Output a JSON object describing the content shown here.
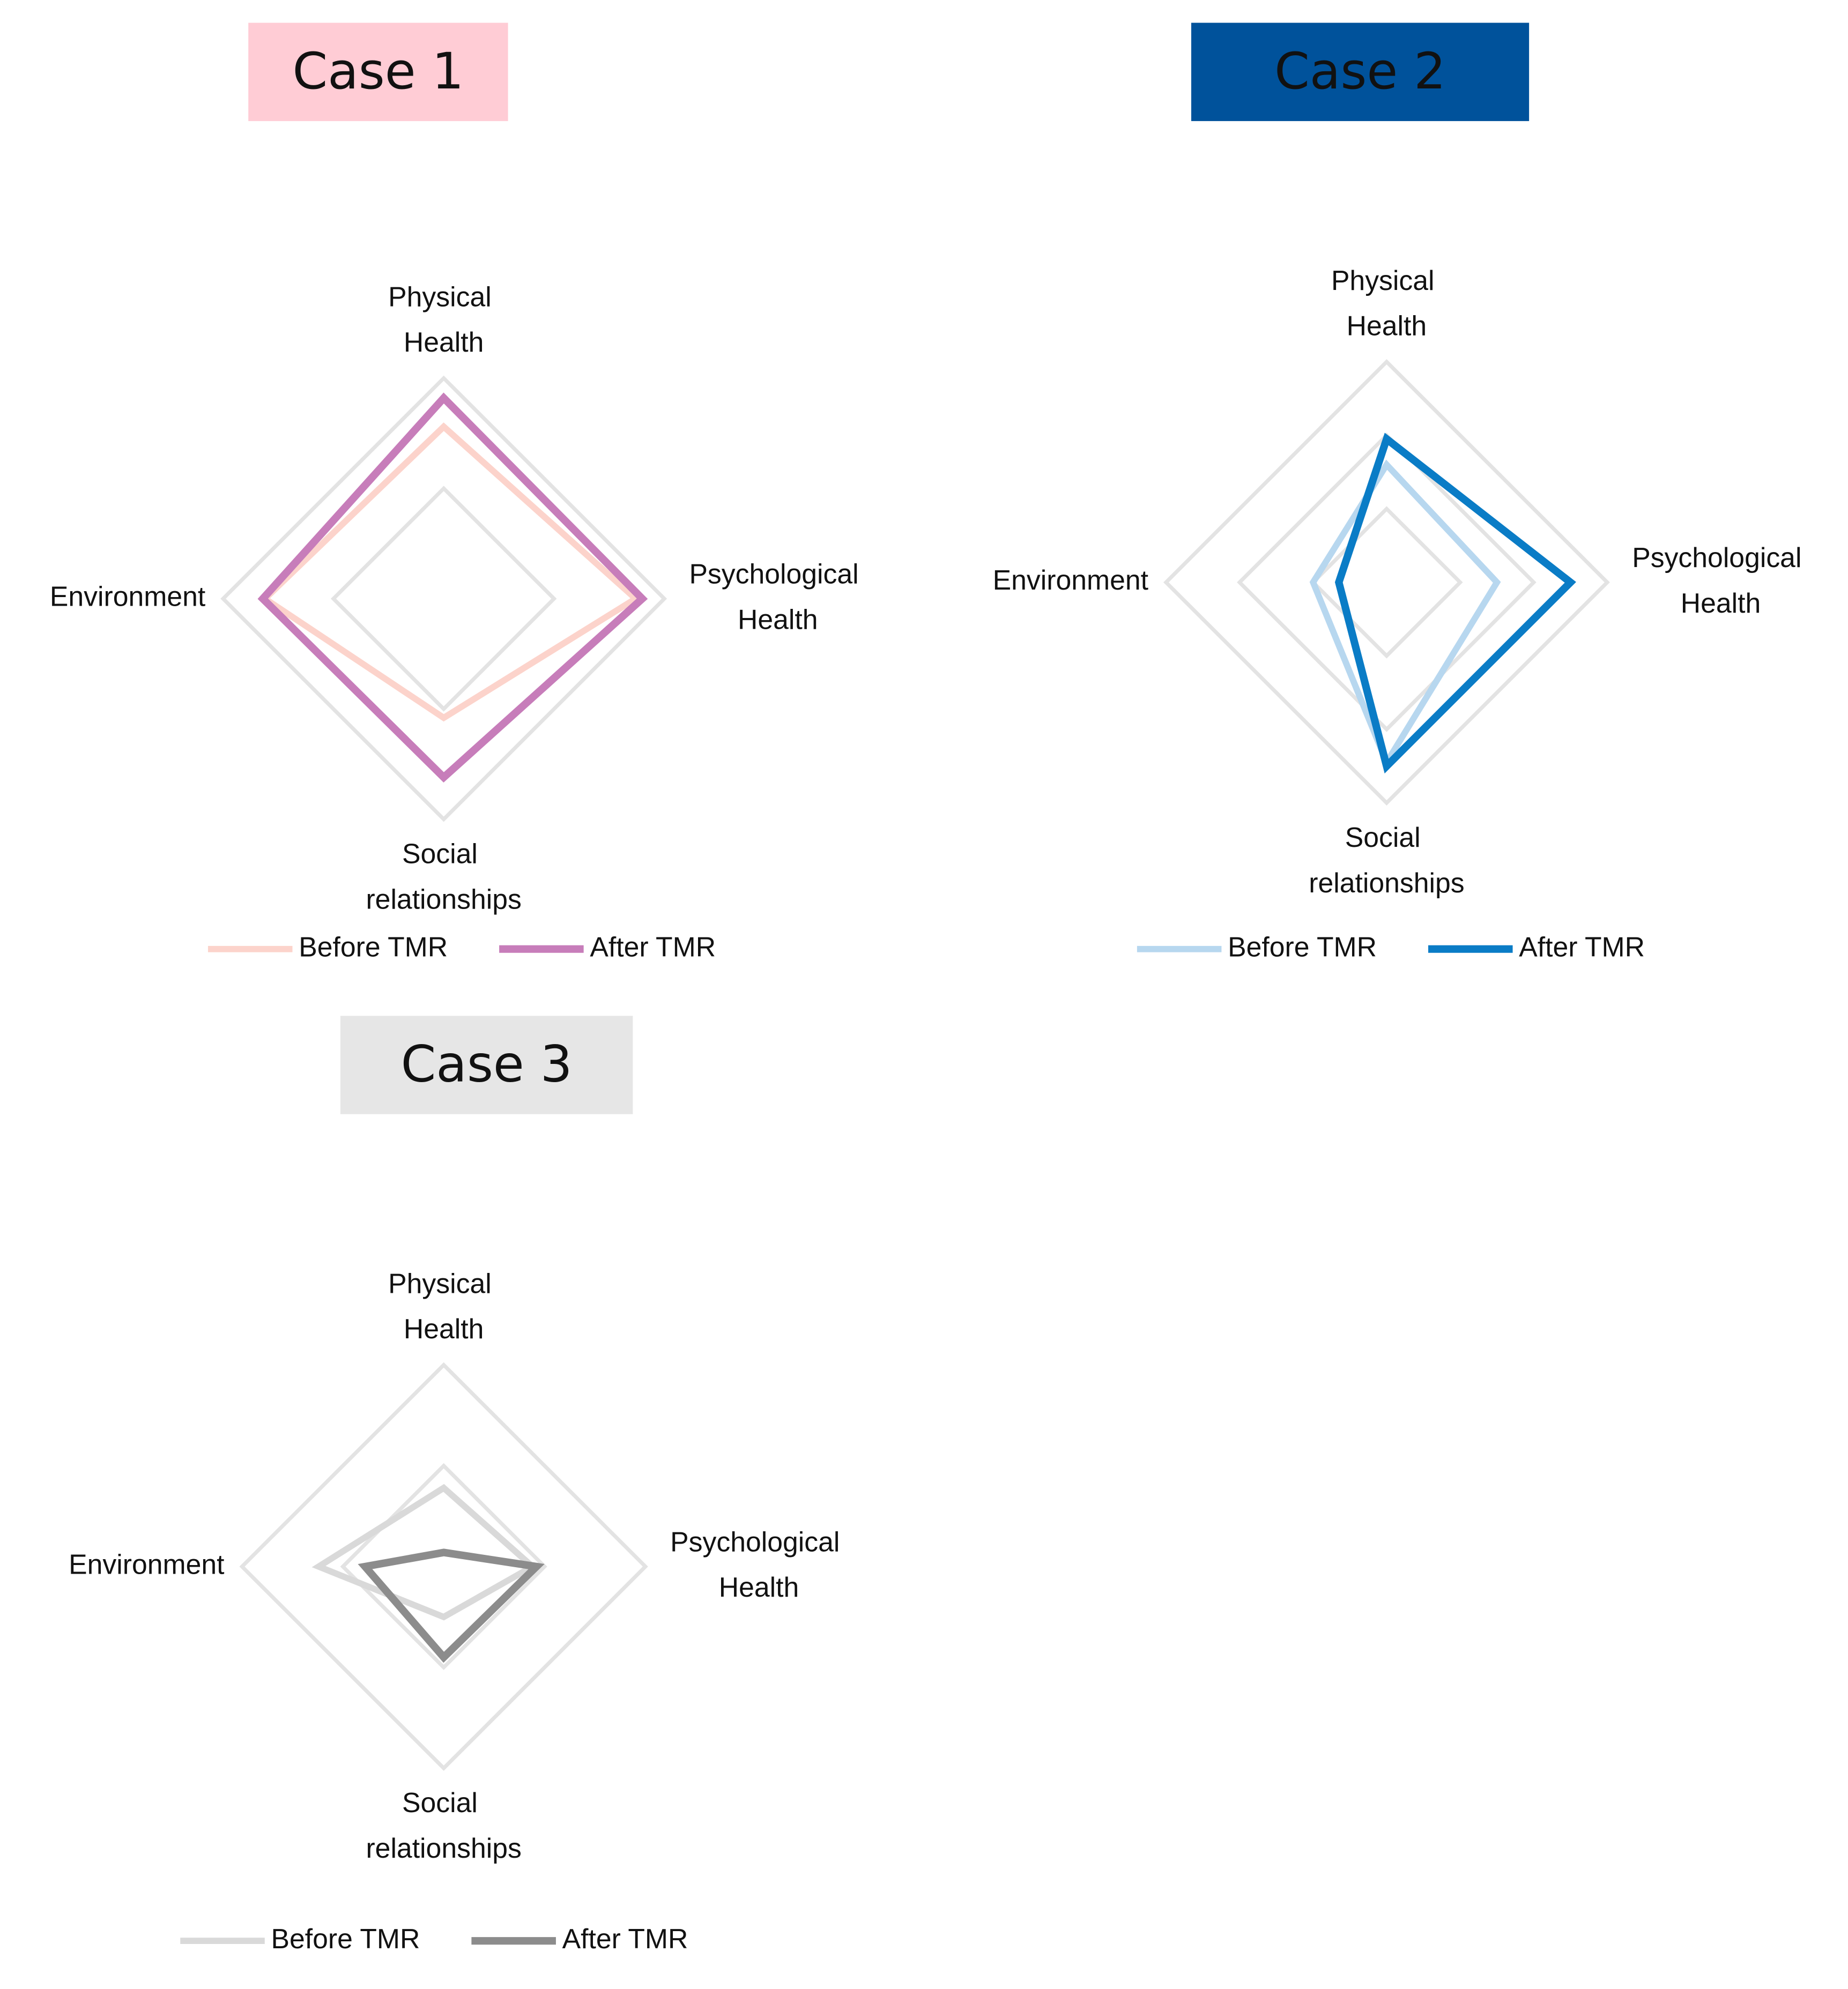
{
  "chart_data": [
    {
      "type": "radar",
      "title": "Case 1",
      "categories": [
        "Physical Health",
        "Psychological Health",
        "Social relationships",
        "Environment"
      ],
      "rlim": [
        0,
        100
      ],
      "rticks": [
        50,
        100
      ],
      "series": [
        {
          "name": "Before TMR",
          "color": "#fcd3cb",
          "values": [
            78,
            87,
            54,
            81
          ]
        },
        {
          "name": "After TMR",
          "color": "#c77dba",
          "values": [
            91,
            90,
            81,
            82
          ]
        }
      ]
    },
    {
      "type": "radar",
      "title": "Case 2",
      "categories": [
        "Physical Health",
        "Psychological Health",
        "Social relationships",
        "Environment"
      ],
      "rlim": [
        0,
        3
      ],
      "rticks": [
        1,
        2,
        3
      ],
      "series": [
        {
          "name": "Before TMR",
          "color": "#b7d7ef",
          "values": [
            1.6,
            1.5,
            2.45,
            1.0
          ]
        },
        {
          "name": "After TMR",
          "color": "#0a7cc6",
          "values": [
            1.95,
            2.5,
            2.5,
            0.65
          ]
        }
      ]
    },
    {
      "type": "radar",
      "title": "Case 3",
      "categories": [
        "Physical Health",
        "Psychological Health",
        "Social relationships",
        "Environment"
      ],
      "rlim": [
        0,
        100
      ],
      "rticks": [
        50,
        100
      ],
      "series": [
        {
          "name": "Before TMR",
          "color": "#d9d9d9",
          "values": [
            39,
            44,
            25,
            62
          ]
        },
        {
          "name": "After TMR",
          "color": "#8c8c8c",
          "values": [
            7,
            46,
            45,
            39
          ]
        }
      ]
    }
  ]
}
